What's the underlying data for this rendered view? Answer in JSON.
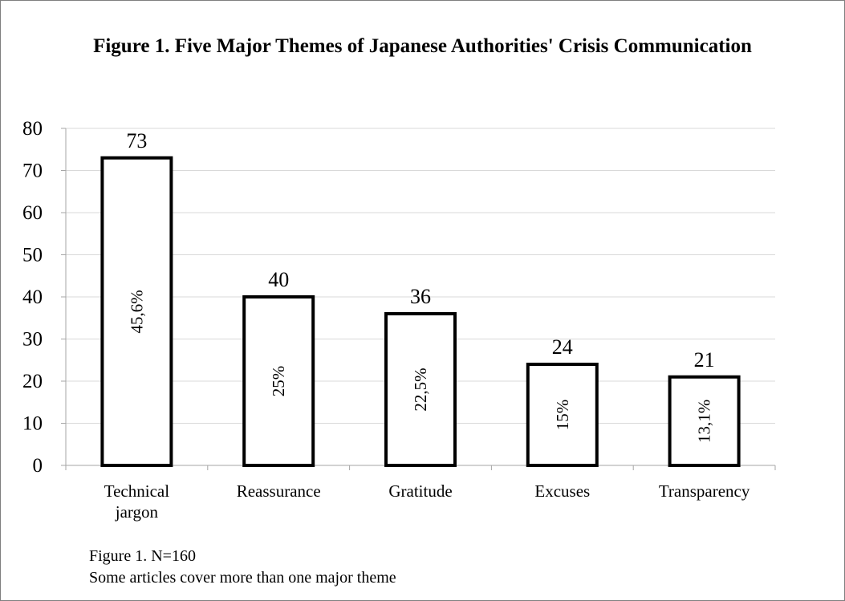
{
  "title": "Figure 1. Five Major Themes of Japanese Authorities' Crisis Communication",
  "notes": [
    "Figure 1. N=160",
    "Some articles cover more than one major theme"
  ],
  "chart_data": {
    "type": "bar",
    "title": "Figure 1. Five Major Themes of Japanese Authorities' Crisis Communication",
    "categories": [
      [
        "Technical",
        "jargon"
      ],
      [
        "Reassurance"
      ],
      [
        "Gratitude"
      ],
      [
        "Excuses"
      ],
      [
        "Transparency"
      ]
    ],
    "values": [
      73,
      40,
      36,
      24,
      21
    ],
    "value_labels": [
      "73",
      "40",
      "36",
      "24",
      "21"
    ],
    "percent_labels": [
      "45,6%",
      "25%",
      "22,5%",
      "15%",
      "13,1%"
    ],
    "xlabel": "",
    "ylabel": "",
    "ylim": [
      0,
      80
    ],
    "yticks": [
      0,
      10,
      20,
      30,
      40,
      50,
      60,
      70,
      80
    ],
    "grid": true,
    "legend": "none",
    "bar_fill": "#ffffff",
    "bar_stroke": "#000000",
    "grid_color": "#d9d9d9",
    "axis_color": "#a6a6a6"
  }
}
